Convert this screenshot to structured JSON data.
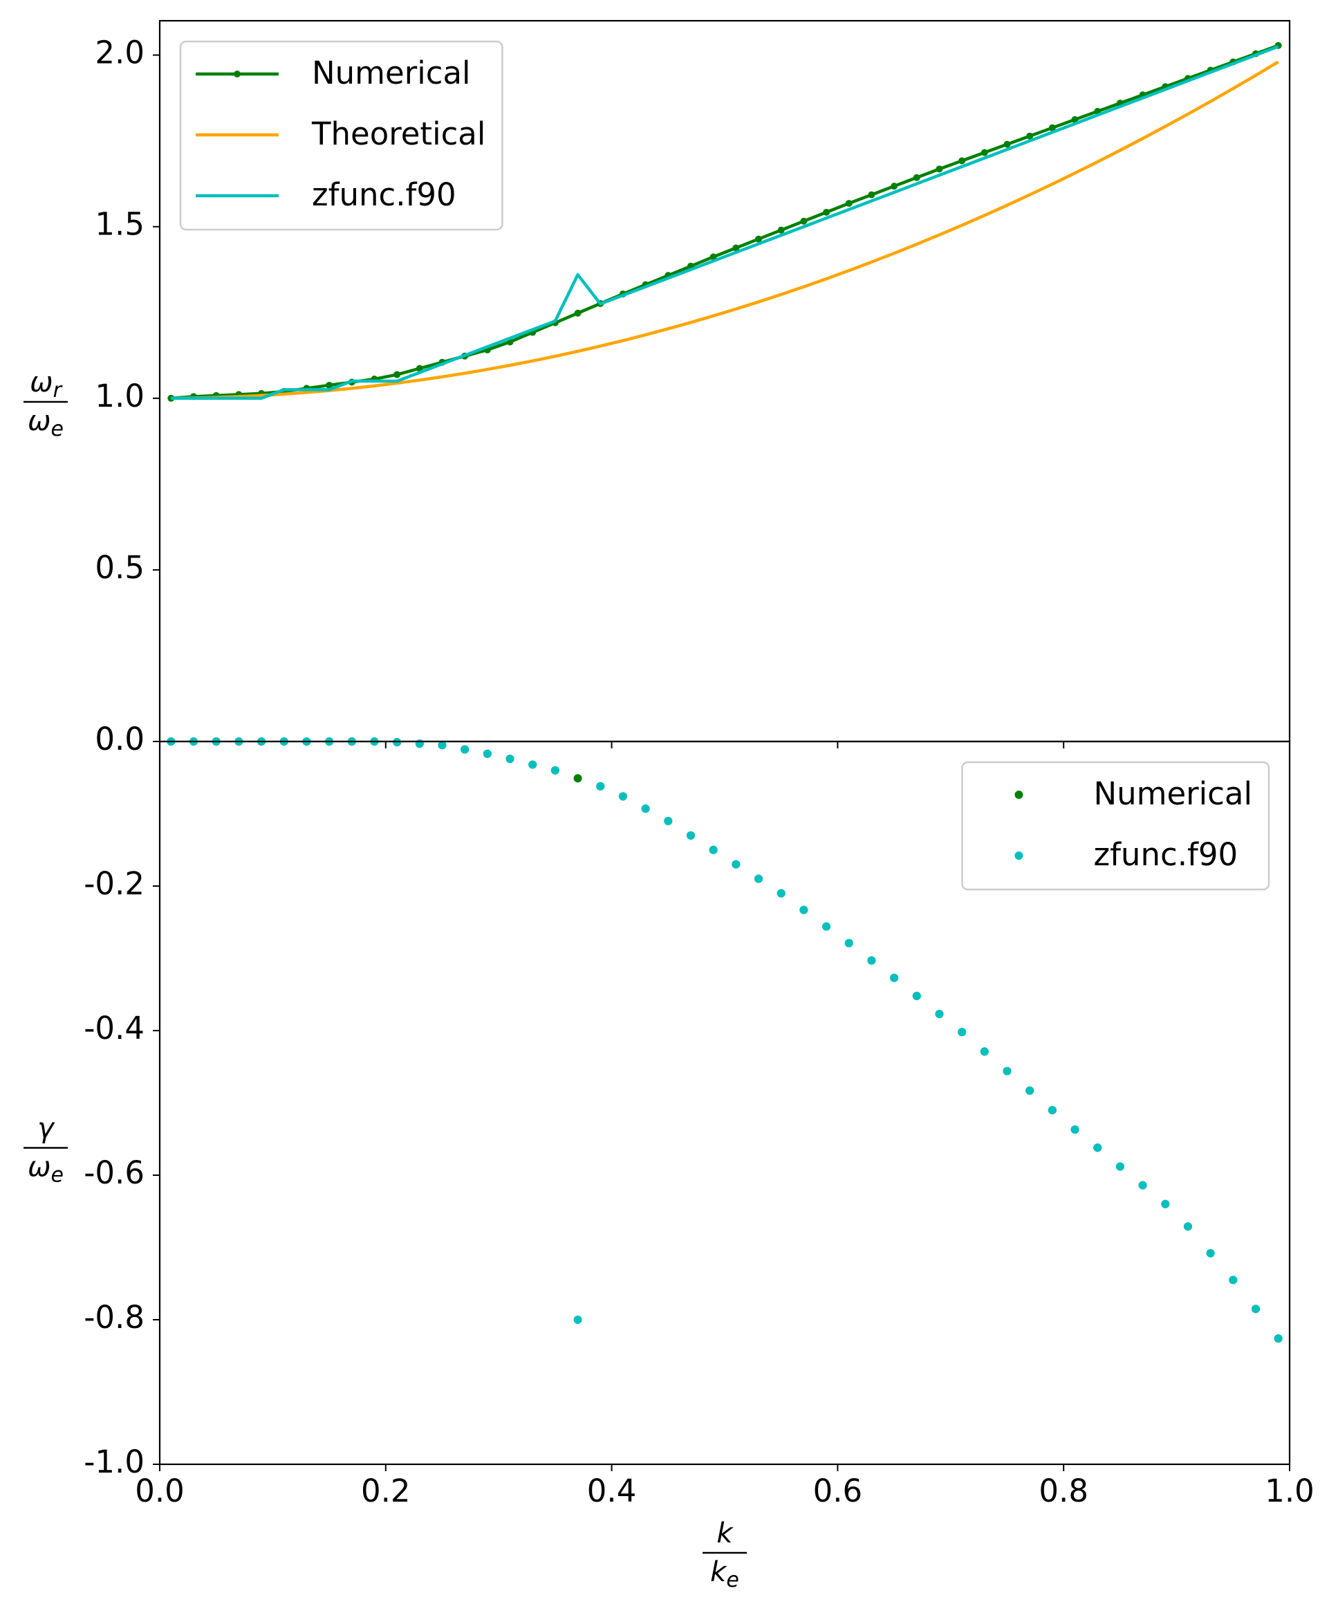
{
  "chart_data": [
    {
      "type": "line",
      "x": [
        0.01,
        0.03,
        0.05,
        0.07,
        0.09,
        0.11,
        0.13,
        0.15,
        0.17,
        0.19,
        0.21,
        0.23,
        0.25,
        0.27,
        0.29,
        0.31,
        0.33,
        0.35,
        0.37,
        0.39,
        0.41,
        0.43,
        0.45,
        0.47,
        0.49,
        0.51,
        0.53,
        0.55,
        0.57,
        0.59,
        0.61,
        0.63,
        0.65,
        0.67,
        0.69,
        0.71,
        0.73,
        0.75,
        0.77,
        0.79,
        0.81,
        0.83,
        0.85,
        0.87,
        0.89,
        0.91,
        0.93,
        0.95,
        0.97,
        0.99
      ],
      "series": [
        {
          "name": "Numerical",
          "color": "#008000",
          "marker": true,
          "values": [
            1.0,
            1.005,
            1.008,
            1.011,
            1.014,
            1.02,
            1.029,
            1.038,
            1.047,
            1.056,
            1.069,
            1.087,
            1.105,
            1.123,
            1.141,
            1.164,
            1.192,
            1.22,
            1.248,
            1.276,
            1.304,
            1.331,
            1.358,
            1.385,
            1.412,
            1.438,
            1.464,
            1.49,
            1.516,
            1.542,
            1.568,
            1.593,
            1.618,
            1.643,
            1.668,
            1.692,
            1.716,
            1.74,
            1.764,
            1.788,
            1.812,
            1.836,
            1.86,
            1.884,
            1.908,
            1.932,
            1.956,
            1.98,
            2.004,
            2.028
          ]
        },
        {
          "name": "Theoretical",
          "color": "#ffa500",
          "marker": false,
          "values": [
            1.0001,
            1.0009,
            1.0025,
            1.0049,
            1.0081,
            1.0121,
            1.0169,
            1.0225,
            1.0289,
            1.0361,
            1.0441,
            1.0529,
            1.0625,
            1.0729,
            1.0841,
            1.0961,
            1.1089,
            1.1225,
            1.1369,
            1.1521,
            1.1681,
            1.1849,
            1.2025,
            1.2209,
            1.2401,
            1.2601,
            1.2809,
            1.3025,
            1.3249,
            1.3481,
            1.3721,
            1.3969,
            1.4225,
            1.4489,
            1.4761,
            1.5041,
            1.5329,
            1.5625,
            1.5929,
            1.6241,
            1.6561,
            1.6889,
            1.7225,
            1.7569,
            1.7921,
            1.8281,
            1.8649,
            1.9025,
            1.9409,
            1.9801
          ]
        },
        {
          "name": "zfunc.f90",
          "color": "#00bfbf",
          "marker": false,
          "values": [
            1.0,
            1.0,
            1.0,
            1.0,
            1.0,
            1.025,
            1.025,
            1.025,
            1.05,
            1.05,
            1.05,
            1.075,
            1.1,
            1.125,
            1.15,
            1.175,
            1.2,
            1.225,
            1.36,
            1.275,
            1.3,
            1.325,
            1.35,
            1.375,
            1.4,
            1.425,
            1.45,
            1.475,
            1.5,
            1.525,
            1.55,
            1.575,
            1.6,
            1.625,
            1.65,
            1.675,
            1.7,
            1.725,
            1.75,
            1.775,
            1.8,
            1.825,
            1.85,
            1.875,
            1.9,
            1.925,
            1.95,
            1.975,
            2.0,
            2.025
          ]
        }
      ],
      "ylabel": {
        "numerator": {
          "symbol": "ω",
          "subscript": "r"
        },
        "denominator": {
          "symbol": "ω",
          "subscript": "e"
        }
      },
      "xlim": [
        0,
        1
      ],
      "ylim": [
        0,
        2.1
      ],
      "xticks": [
        0,
        0.2,
        0.4,
        0.6,
        0.8,
        1
      ],
      "show_xtick_labels": false,
      "yticks": [
        {
          "value": 0,
          "label": "0.0"
        },
        0.5,
        {
          "value": 1,
          "label": "1.0"
        },
        1.5,
        {
          "value": 2,
          "label": "2.0"
        }
      ],
      "legend": "upper left"
    },
    {
      "type": "scatter",
      "x": [
        0.01,
        0.03,
        0.05,
        0.07,
        0.09,
        0.11,
        0.13,
        0.15,
        0.17,
        0.19,
        0.21,
        0.23,
        0.25,
        0.27,
        0.29,
        0.31,
        0.33,
        0.35,
        0.37,
        0.39,
        0.41,
        0.43,
        0.45,
        0.47,
        0.49,
        0.51,
        0.53,
        0.55,
        0.57,
        0.59,
        0.61,
        0.63,
        0.65,
        0.67,
        0.69,
        0.71,
        0.73,
        0.75,
        0.77,
        0.79,
        0.81,
        0.83,
        0.85,
        0.87,
        0.89,
        0.91,
        0.93,
        0.95,
        0.97,
        0.99
      ],
      "series": [
        {
          "name": "Numerical",
          "color": "#008000",
          "values": [
            0,
            0,
            0,
            0,
            0,
            0,
            0,
            0,
            0,
            0,
            -0.001,
            -0.003,
            -0.005,
            -0.011,
            -0.017,
            -0.024,
            -0.032,
            -0.04,
            -0.051,
            -0.062,
            -0.076,
            -0.093,
            -0.11,
            -0.13,
            -0.15,
            -0.17,
            -0.19,
            -0.21,
            -0.233,
            -0.256,
            -0.279,
            -0.303,
            -0.327,
            -0.352,
            -0.377,
            -0.402,
            -0.429,
            -0.456,
            -0.483,
            -0.51,
            -0.537,
            -0.562,
            -0.588,
            -0.614,
            -0.64,
            -0.671,
            -0.708,
            -0.745,
            -0.785,
            -0.826
          ]
        },
        {
          "name": "zfunc.f90",
          "color": "#00bfbf",
          "values": [
            0,
            0,
            0,
            0,
            0,
            0,
            0,
            0,
            0,
            0,
            -0.001,
            -0.003,
            -0.005,
            -0.011,
            -0.017,
            -0.024,
            -0.032,
            -0.04,
            -0.8,
            -0.062,
            -0.076,
            -0.093,
            -0.11,
            -0.13,
            -0.15,
            -0.17,
            -0.19,
            -0.21,
            -0.233,
            -0.256,
            -0.279,
            -0.303,
            -0.327,
            -0.352,
            -0.377,
            -0.402,
            -0.429,
            -0.456,
            -0.483,
            -0.51,
            -0.537,
            -0.562,
            -0.588,
            -0.614,
            -0.64,
            -0.671,
            -0.708,
            -0.745,
            -0.785,
            -0.826
          ]
        }
      ],
      "ylabel": {
        "numerator": {
          "symbol": "γ"
        },
        "denominator": {
          "symbol": "ω",
          "subscript": "e"
        }
      },
      "xlabel": {
        "numerator": {
          "symbol": "k"
        },
        "denominator": {
          "symbol": "k",
          "subscript": "e"
        }
      },
      "xlim": [
        0,
        1
      ],
      "ylim": [
        -1,
        0
      ],
      "xticks": [
        {
          "value": 0,
          "label": "0.0"
        },
        0.2,
        0.4,
        0.6,
        0.8,
        {
          "value": 1,
          "label": "1.0"
        }
      ],
      "show_xtick_labels": true,
      "yticks": [
        {
          "value": -1,
          "label": "-1.0"
        },
        -0.8,
        -0.6,
        -0.4,
        -0.2,
        {
          "value": 0,
          "label": "0.0"
        }
      ],
      "legend": "upper right"
    }
  ]
}
